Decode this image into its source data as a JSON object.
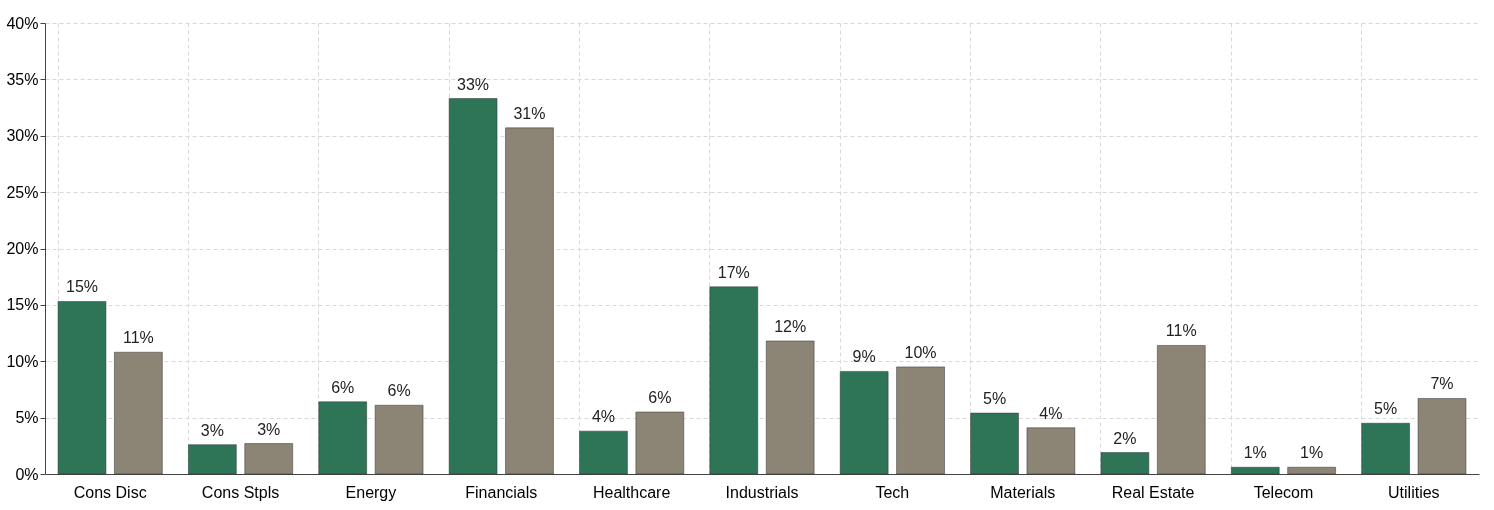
{
  "chart_data": {
    "type": "bar",
    "categories": [
      "Cons Disc",
      "Cons Stpls",
      "Energy",
      "Financials",
      "Healthcare",
      "Industrials",
      "Tech",
      "Materials",
      "Real Estate",
      "Telecom",
      "Utilities"
    ],
    "series": [
      {
        "color": "#2e7558",
        "values": [
          15.3,
          2.6,
          6.4,
          33.3,
          3.8,
          16.6,
          9.1,
          5.4,
          1.9,
          0.6,
          4.5
        ],
        "value_labels": [
          "15%",
          "3%",
          "6%",
          "33%",
          "4%",
          "17%",
          "9%",
          "5%",
          "2%",
          "1%",
          "5%"
        ]
      },
      {
        "color": "#8c8474",
        "values": [
          10.8,
          2.7,
          6.1,
          30.7,
          5.5,
          11.8,
          9.5,
          4.1,
          11.4,
          0.6,
          6.7
        ],
        "value_labels": [
          "11%",
          "3%",
          "6%",
          "31%",
          "6%",
          "12%",
          "10%",
          "4%",
          "11%",
          "1%",
          "7%"
        ]
      }
    ],
    "ylim": [
      0,
      40
    ],
    "yticks": [
      {
        "value": 0,
        "label": "0%"
      },
      {
        "value": 5,
        "label": "5%"
      },
      {
        "value": 10,
        "label": "10%"
      },
      {
        "value": 15,
        "label": "15%"
      },
      {
        "value": 20,
        "label": "20%"
      },
      {
        "value": 25,
        "label": "25%"
      },
      {
        "value": 30,
        "label": "30%"
      },
      {
        "value": 35,
        "label": "35%"
      },
      {
        "value": 40,
        "label": "40%"
      }
    ],
    "grid": true
  }
}
